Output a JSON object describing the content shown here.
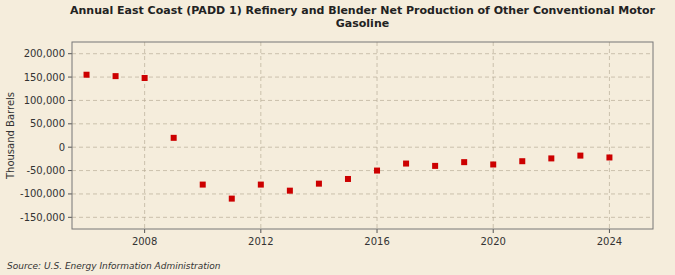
{
  "chart_data": {
    "type": "scatter",
    "title": "Annual East Coast (PADD 1) Refinery and Blender Net Production of Other Conventional Motor\nGasoline",
    "ylabel": "Thousand Barrels",
    "source": "Source: U.S. Energy Information Administration",
    "color": "#cc0000",
    "marker": "square",
    "grid": true,
    "x": [
      2006,
      2007,
      2008,
      2009,
      2010,
      2011,
      2012,
      2013,
      2014,
      2015,
      2016,
      2017,
      2018,
      2019,
      2020,
      2021,
      2022,
      2023,
      2024
    ],
    "values": [
      155000,
      152000,
      148000,
      20000,
      -80000,
      -110000,
      -80000,
      -93000,
      -78000,
      -68000,
      -50000,
      -35000,
      -40000,
      -32000,
      -37000,
      -30000,
      -24000,
      -18000,
      -22000
    ],
    "xlim": [
      2005.5,
      2025.5
    ],
    "xticks": [
      2008,
      2012,
      2016,
      2020,
      2024
    ],
    "ylim": [
      -175000,
      225000
    ],
    "yticks": [
      {
        "value": -150000,
        "label": "-150,000"
      },
      {
        "value": -100000,
        "label": "-100,000"
      },
      {
        "value": -50000,
        "label": "-50,000"
      },
      0,
      {
        "value": 50000,
        "label": "50,000"
      },
      {
        "value": 100000,
        "label": "100,000"
      },
      {
        "value": 150000,
        "label": "150,000"
      },
      {
        "value": 200000,
        "label": "200,000"
      }
    ]
  }
}
